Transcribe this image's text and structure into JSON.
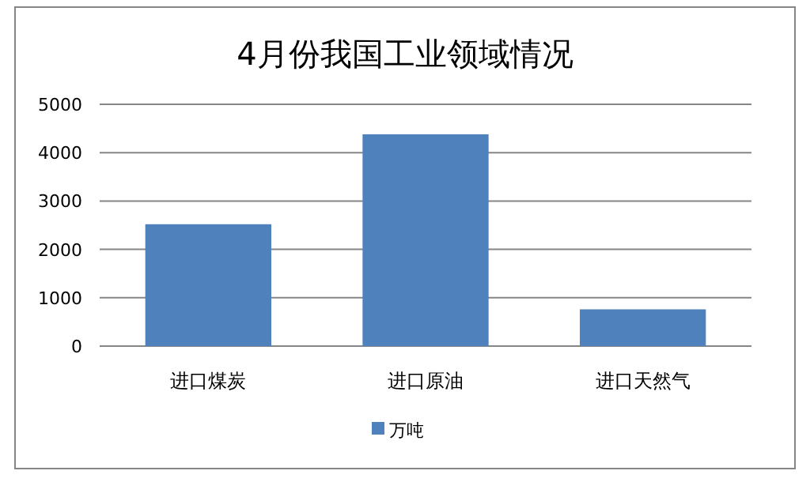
{
  "chart_data": {
    "type": "bar",
    "title": "4月份我国工业领域情况",
    "categories": [
      "进口煤炭",
      "进口原油",
      "进口天然气"
    ],
    "series": [
      {
        "name": "万吨",
        "color": "#4f81bd",
        "values": [
          2520,
          4380,
          760
        ]
      }
    ],
    "ylim": [
      0,
      5000
    ],
    "yticks": [
      0,
      1000,
      2000,
      3000,
      4000,
      5000
    ],
    "grid": "y",
    "legend": "bottom"
  }
}
